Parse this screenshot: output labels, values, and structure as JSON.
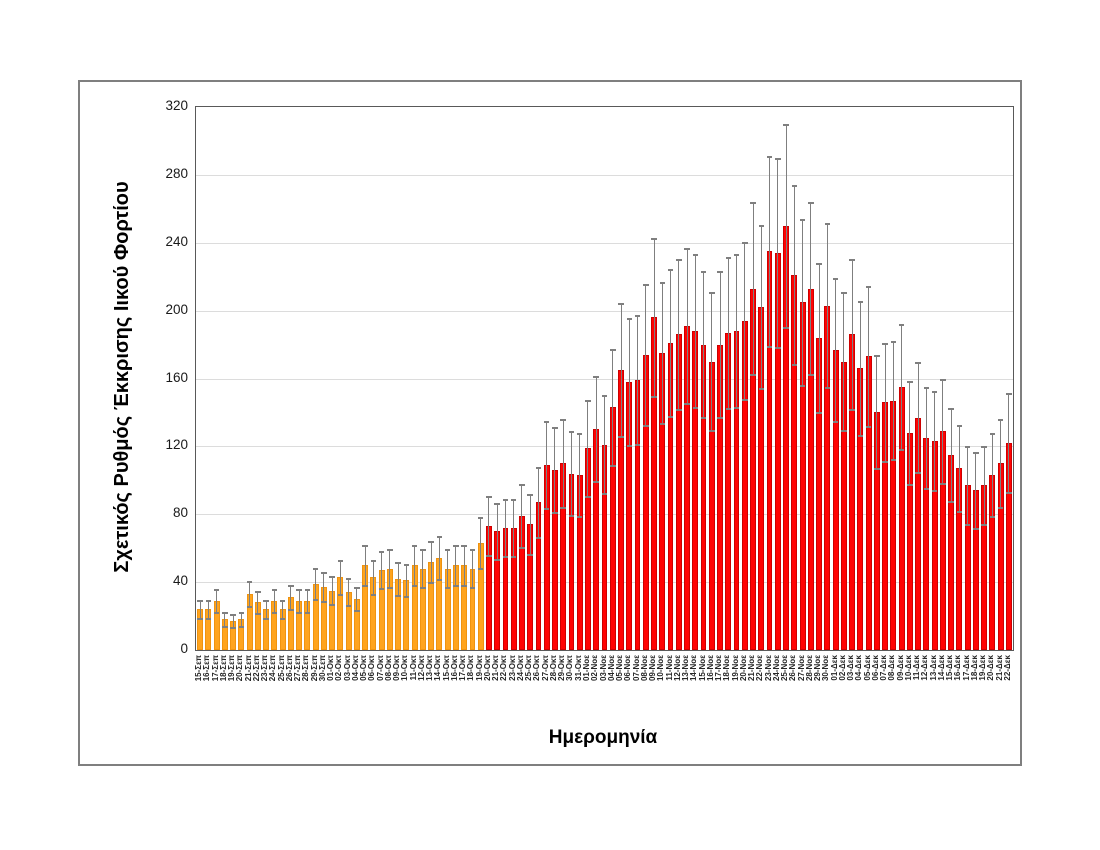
{
  "chart_data": {
    "type": "bar",
    "title": "",
    "xlabel": "Ημερομηνία",
    "ylabel": "Σχετικός Ρυθμός Έκκρισης Ιικού Φορτίου",
    "ylim": [
      0,
      320
    ],
    "yticks": [
      0,
      40,
      80,
      120,
      160,
      200,
      240,
      280,
      320
    ],
    "grid": "horizontal",
    "legend": "none",
    "categories": [
      "15-Σεπ",
      "16-Σεπ",
      "17-Σεπ",
      "18-Σεπ",
      "19-Σεπ",
      "20-Σεπ",
      "21-Σεπ",
      "22-Σεπ",
      "23-Σεπ",
      "24-Σεπ",
      "25-Σεπ",
      "26-Σεπ",
      "27-Σεπ",
      "28-Σεπ",
      "29-Σεπ",
      "30-Σεπ",
      "01-Οκτ",
      "02-Οκτ",
      "03-Οκτ",
      "04-Οκτ",
      "05-Οκτ",
      "06-Οκτ",
      "07-Οκτ",
      "08-Οκτ",
      "09-Οκτ",
      "10-Οκτ",
      "11-Οκτ",
      "12-Οκτ",
      "13-Οκτ",
      "14-Οκτ",
      "15-Οκτ",
      "16-Οκτ",
      "17-Οκτ",
      "18-Οκτ",
      "19-Οκτ",
      "20-Οκτ",
      "21-Οκτ",
      "22-Οκτ",
      "23-Οκτ",
      "24-Οκτ",
      "25-Οκτ",
      "26-Οκτ",
      "27-Οκτ",
      "28-Οκτ",
      "29-Οκτ",
      "30-Οκτ",
      "31-Οκτ",
      "01-Νοε",
      "02-Νοε",
      "03-Νοε",
      "04-Νοε",
      "05-Νοε",
      "06-Νοε",
      "07-Νοε",
      "08-Νοε",
      "09-Νοε",
      "10-Νοε",
      "11-Νοε",
      "12-Νοε",
      "13-Νοε",
      "14-Νοε",
      "15-Νοε",
      "16-Νοε",
      "17-Νοε",
      "18-Νοε",
      "19-Νοε",
      "20-Νοε",
      "21-Νοε",
      "22-Νοε",
      "23-Νοε",
      "24-Νοε",
      "25-Νοε",
      "26-Νοε",
      "27-Νοε",
      "28-Νοε",
      "29-Νοε",
      "30-Νοε",
      "01-Δεκ",
      "02-Δεκ",
      "03-Δεκ",
      "04-Δεκ",
      "05-Δεκ",
      "06-Δεκ",
      "07-Δεκ",
      "08-Δεκ",
      "09-Δεκ",
      "10-Δεκ",
      "11-Δεκ",
      "12-Δεκ",
      "13-Δεκ",
      "14-Δεκ",
      "15-Δεκ",
      "16-Δεκ",
      "17-Δεκ",
      "18-Δεκ",
      "19-Δεκ",
      "20-Δεκ",
      "21-Δεκ",
      "22-Δεκ"
    ],
    "values": [
      24,
      24,
      29,
      18,
      17,
      18,
      33,
      28,
      24,
      29,
      24,
      31,
      29,
      29,
      39,
      37,
      35,
      43,
      34,
      30,
      50,
      43,
      47,
      48,
      42,
      41,
      50,
      48,
      52,
      54,
      48,
      50,
      50,
      48,
      63,
      73,
      70,
      72,
      72,
      79,
      74,
      87,
      109,
      106,
      110,
      104,
      103,
      119,
      130,
      121,
      143,
      165,
      158,
      159,
      174,
      196,
      175,
      181,
      186,
      191,
      188,
      180,
      170,
      180,
      187,
      188,
      194,
      213,
      202,
      235,
      234,
      250,
      221,
      205,
      213,
      184,
      203,
      177,
      170,
      186,
      166,
      173,
      140,
      146,
      147,
      155,
      128,
      137,
      125,
      123,
      129,
      115,
      107,
      97,
      94,
      97,
      103,
      110,
      122
    ],
    "error_bars": {
      "style": "gray whiskers with end caps, upper and lower",
      "upper_pct": 24,
      "lower_pct": 24,
      "color": "#7F7F7F"
    },
    "segments": [
      {
        "from": "15-Σεπ",
        "to": "19-Οκτ",
        "color": "#FFA41E",
        "count": 35
      },
      {
        "from": "20-Οκτ",
        "to": "22-Δεκ",
        "color": "#FF0303",
        "count": 64
      }
    ],
    "colors": {
      "orange_bar": "#FFA41E",
      "orange_border": "#EF9310",
      "red_bar": "#FF0303",
      "red_border": "#CD0000",
      "gridline": "#DCDCDC",
      "plot_border": "#595959",
      "outer_border": "#7F7F7F"
    }
  }
}
